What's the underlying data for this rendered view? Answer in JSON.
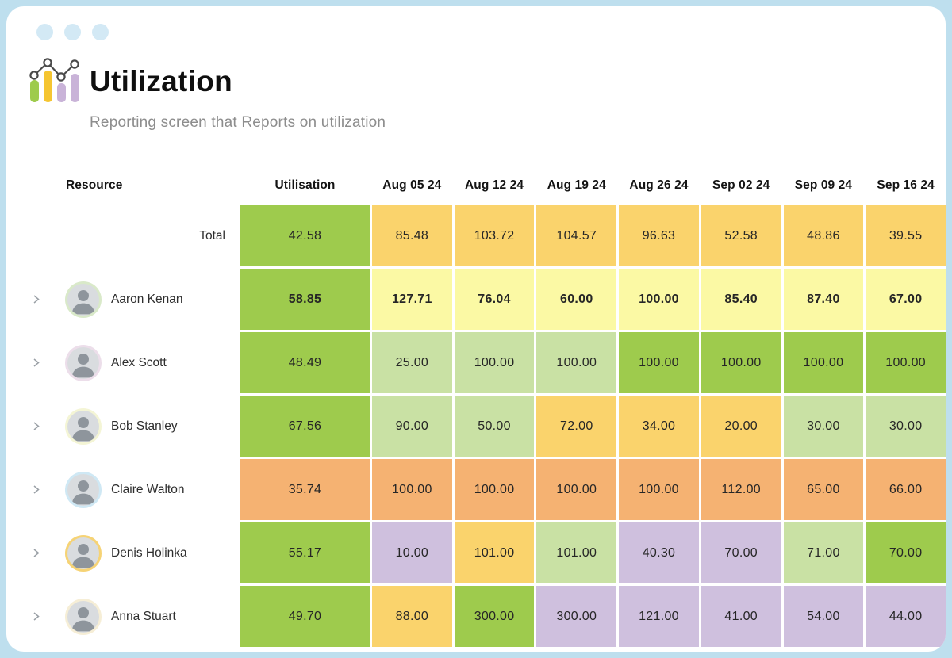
{
  "window": {
    "controls": [
      "minimize-dot",
      "maximize-dot",
      "close-dot"
    ]
  },
  "header": {
    "icon": "bar-line-chart-icon",
    "title": "Utilization",
    "subtitle": "Reporting screen that Reports on utilization"
  },
  "colors": {
    "green": "#9ecb4d",
    "lightGreen": "#c9e1a4",
    "yellow": "#fad36c",
    "paleYellow": "#fbf9a4",
    "orange": "#f5b272",
    "purple": "#cfc0de"
  },
  "icon_colors": {
    "bar1": "#9ecb4d",
    "bar2": "#f5c531",
    "bar3": "#c9b3d8",
    "bar4": "#c9b3d8",
    "line": "#4a4a4a"
  },
  "table": {
    "resource_header": "Resource",
    "utilisation_header": "Utilisation",
    "date_columns": [
      "Aug 05 24",
      "Aug 12 24",
      "Aug 19 24",
      "Aug 26 24",
      "Sep 02 24",
      "Sep 09 24",
      "Sep 16 24"
    ],
    "rows": [
      {
        "name": "Total",
        "is_total": true,
        "bold": false,
        "utilisation": {
          "value": "42.58",
          "color": "green"
        },
        "cells": [
          {
            "value": "85.48",
            "color": "yellow"
          },
          {
            "value": "103.72",
            "color": "yellow"
          },
          {
            "value": "104.57",
            "color": "yellow"
          },
          {
            "value": "96.63",
            "color": "yellow"
          },
          {
            "value": "52.58",
            "color": "yellow"
          },
          {
            "value": "48.86",
            "color": "yellow"
          },
          {
            "value": "39.55",
            "color": "yellow"
          }
        ]
      },
      {
        "name": "Aaron Kenan",
        "is_total": false,
        "bold": true,
        "avatar_ring": "#d9e9c9",
        "utilisation": {
          "value": "58.85",
          "color": "green"
        },
        "cells": [
          {
            "value": "127.71",
            "color": "paleYellow"
          },
          {
            "value": "76.04",
            "color": "paleYellow"
          },
          {
            "value": "60.00",
            "color": "paleYellow"
          },
          {
            "value": "100.00",
            "color": "paleYellow"
          },
          {
            "value": "85.40",
            "color": "paleYellow"
          },
          {
            "value": "87.40",
            "color": "paleYellow"
          },
          {
            "value": "67.00",
            "color": "paleYellow"
          }
        ]
      },
      {
        "name": "Alex Scott",
        "is_total": false,
        "bold": false,
        "avatar_ring": "#ecdeea",
        "utilisation": {
          "value": "48.49",
          "color": "green"
        },
        "cells": [
          {
            "value": "25.00",
            "color": "lightGreen"
          },
          {
            "value": "100.00",
            "color": "lightGreen"
          },
          {
            "value": "100.00",
            "color": "lightGreen"
          },
          {
            "value": "100.00",
            "color": "green"
          },
          {
            "value": "100.00",
            "color": "green"
          },
          {
            "value": "100.00",
            "color": "green"
          },
          {
            "value": "100.00",
            "color": "green"
          }
        ]
      },
      {
        "name": "Bob Stanley",
        "is_total": false,
        "bold": false,
        "avatar_ring": "#f4f5d5",
        "utilisation": {
          "value": "67.56",
          "color": "green"
        },
        "cells": [
          {
            "value": "90.00",
            "color": "lightGreen"
          },
          {
            "value": "50.00",
            "color": "lightGreen"
          },
          {
            "value": "72.00",
            "color": "yellow"
          },
          {
            "value": "34.00",
            "color": "yellow"
          },
          {
            "value": "20.00",
            "color": "yellow"
          },
          {
            "value": "30.00",
            "color": "lightGreen"
          },
          {
            "value": "30.00",
            "color": "lightGreen"
          }
        ]
      },
      {
        "name": "Claire Walton",
        "is_total": false,
        "bold": false,
        "avatar_ring": "#cfe8f4",
        "utilisation": {
          "value": "35.74",
          "color": "orange"
        },
        "cells": [
          {
            "value": "100.00",
            "color": "orange"
          },
          {
            "value": "100.00",
            "color": "orange"
          },
          {
            "value": "100.00",
            "color": "orange"
          },
          {
            "value": "100.00",
            "color": "orange"
          },
          {
            "value": "112.00",
            "color": "orange"
          },
          {
            "value": "65.00",
            "color": "orange"
          },
          {
            "value": "66.00",
            "color": "orange"
          }
        ]
      },
      {
        "name": "Denis Holinka",
        "is_total": false,
        "bold": false,
        "avatar_ring": "#f6d375",
        "utilisation": {
          "value": "55.17",
          "color": "green"
        },
        "cells": [
          {
            "value": "10.00",
            "color": "purple"
          },
          {
            "value": "101.00",
            "color": "yellow"
          },
          {
            "value": "101.00",
            "color": "lightGreen"
          },
          {
            "value": "40.30",
            "color": "purple"
          },
          {
            "value": "70.00",
            "color": "purple"
          },
          {
            "value": "71.00",
            "color": "lightGreen"
          },
          {
            "value": "70.00",
            "color": "green"
          }
        ]
      },
      {
        "name": "Anna Stuart",
        "is_total": false,
        "bold": false,
        "avatar_ring": "#f6eed6",
        "utilisation": {
          "value": "49.70",
          "color": "green"
        },
        "cells": [
          {
            "value": "88.00",
            "color": "yellow"
          },
          {
            "value": "300.00",
            "color": "green"
          },
          {
            "value": "300.00",
            "color": "purple"
          },
          {
            "value": "121.00",
            "color": "purple"
          },
          {
            "value": "41.00",
            "color": "purple"
          },
          {
            "value": "54.00",
            "color": "purple"
          },
          {
            "value": "44.00",
            "color": "purple"
          }
        ]
      }
    ]
  }
}
